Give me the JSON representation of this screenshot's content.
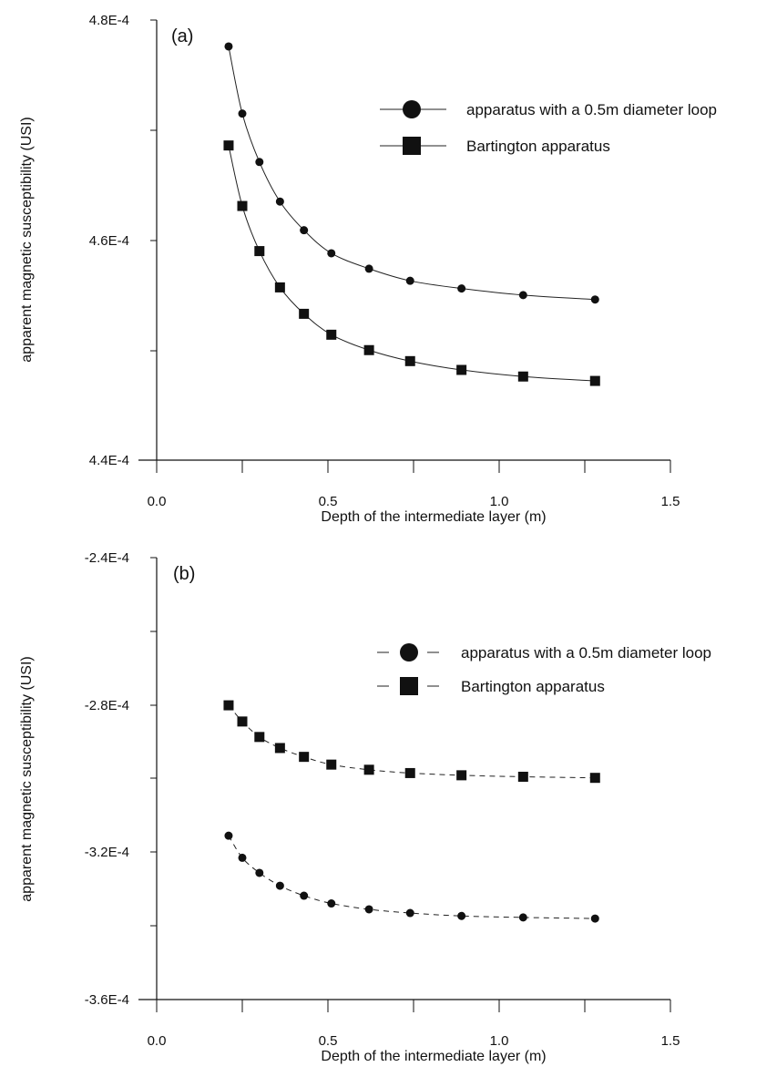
{
  "chart_data": [
    {
      "type": "line",
      "panel_label": "(a)",
      "xlabel": "Depth of the intermediate layer (m)",
      "ylabel": "apparent magnetic susceptibility (USI)",
      "xlim": [
        0.0,
        1.5
      ],
      "ylim": [
        0.00044,
        0.00048
      ],
      "x_ticks": [
        "0.0",
        "0.5",
        "1.0",
        "1.5"
      ],
      "y_ticks": [
        "4.4E-4",
        "4.6E-4",
        "4.8E-4"
      ],
      "legend_position": "top-right",
      "line_style": "solid",
      "grid": false,
      "series": [
        {
          "name": "apparatus with a 0.5m diameter loop",
          "marker": "circle",
          "x": [
            0.21,
            0.25,
            0.3,
            0.36,
            0.43,
            0.51,
            0.62,
            0.74,
            0.89,
            1.07,
            1.28
          ],
          "y": [
            0.0004776,
            0.0004715,
            0.0004671,
            0.0004635,
            0.0004609,
            0.0004588,
            0.0004574,
            0.0004563,
            0.0004556,
            0.000455,
            0.0004546
          ]
        },
        {
          "name": "Bartington apparatus",
          "marker": "square",
          "x": [
            0.21,
            0.25,
            0.3,
            0.36,
            0.43,
            0.51,
            0.62,
            0.74,
            0.89,
            1.07,
            1.28
          ],
          "y": [
            0.0004686,
            0.0004631,
            0.000459,
            0.0004557,
            0.0004533,
            0.0004514,
            0.00045,
            0.000449,
            0.0004482,
            0.0004476,
            0.0004472
          ]
        }
      ]
    },
    {
      "type": "line",
      "panel_label": "(b)",
      "xlabel": "Depth of the intermediate layer (m)",
      "ylabel": "apparent magnetic susceptibility (USI)",
      "xlim": [
        0.0,
        1.5
      ],
      "ylim": [
        -0.00036,
        -0.00024
      ],
      "x_ticks": [
        "0.0",
        "0.5",
        "1.0",
        "1.5"
      ],
      "y_ticks": [
        "-2.4E-4",
        "-2.8E-4",
        "-3.2E-4",
        "-3.6E-4"
      ],
      "legend_position": "top-right",
      "line_style": "dashed",
      "grid": false,
      "series": [
        {
          "name": "apparatus with a 0.5m diameter loop",
          "marker": "circle",
          "x": [
            0.21,
            0.25,
            0.3,
            0.36,
            0.43,
            0.51,
            0.62,
            0.74,
            0.89,
            1.07,
            1.28
          ],
          "y": [
            -0.0003155,
            -0.0003215,
            -0.0003256,
            -0.0003291,
            -0.0003318,
            -0.0003339,
            -0.0003355,
            -0.0003365,
            -0.0003373,
            -0.0003377,
            -0.000338
          ]
        },
        {
          "name": "Bartington apparatus",
          "marker": "square",
          "x": [
            0.21,
            0.25,
            0.3,
            0.36,
            0.43,
            0.51,
            0.62,
            0.74,
            0.89,
            1.07,
            1.28
          ],
          "y": [
            -0.0002801,
            -0.0002845,
            -0.0002887,
            -0.0002917,
            -0.0002941,
            -0.0002962,
            -0.0002976,
            -0.0002985,
            -0.0002991,
            -0.0002995,
            -0.0002998
          ]
        }
      ]
    }
  ]
}
